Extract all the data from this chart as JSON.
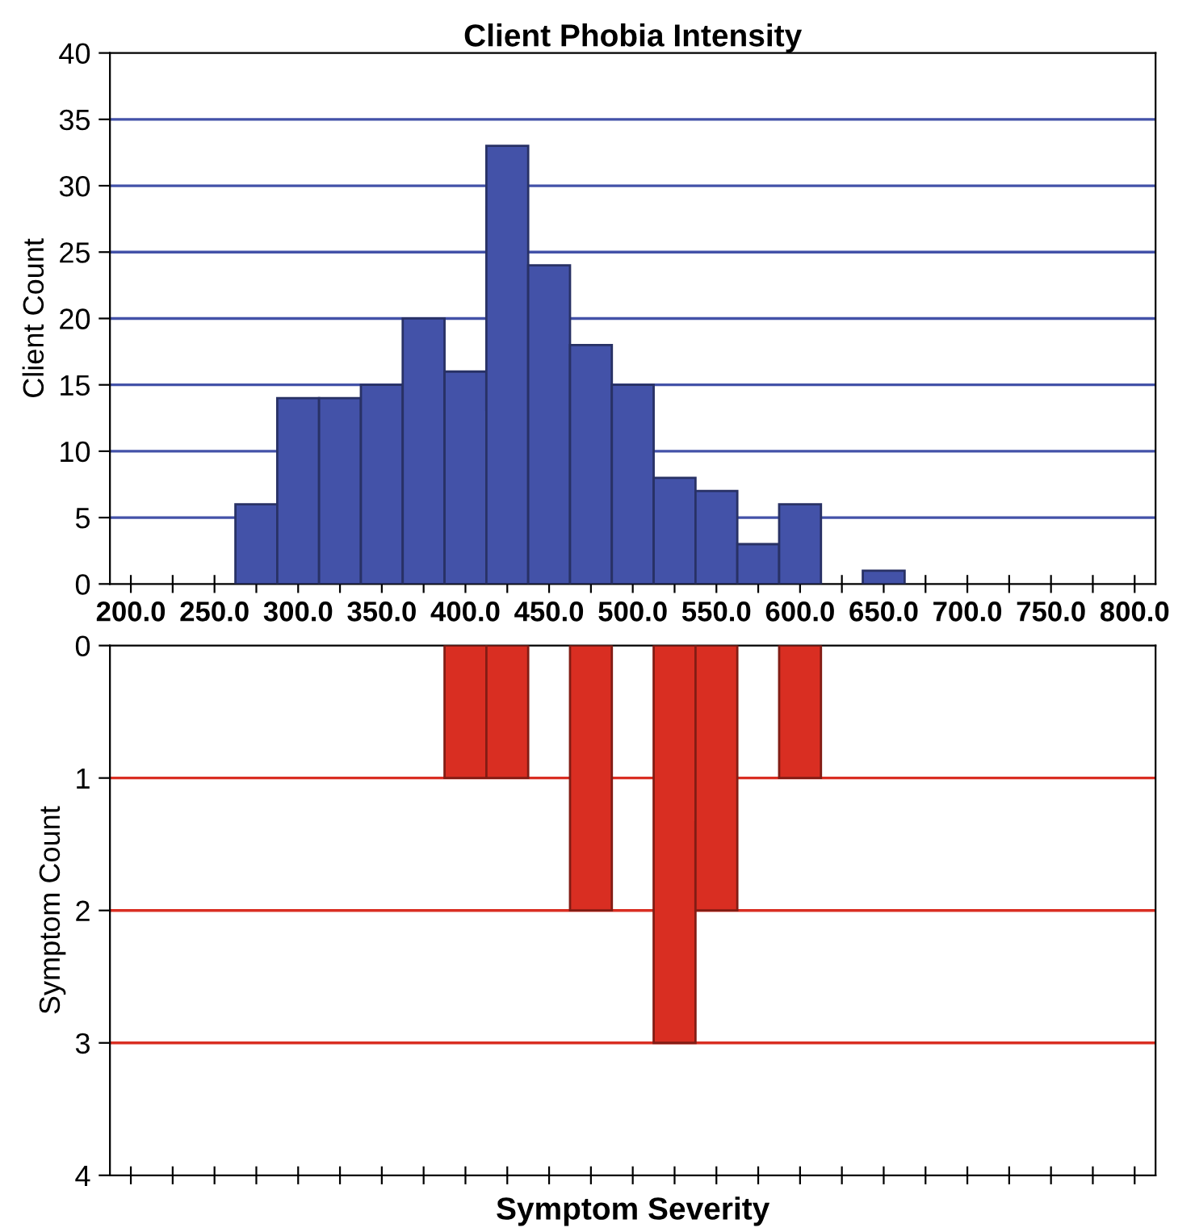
{
  "chart_data": [
    {
      "type": "histogram",
      "title": "Client Phobia Intensity",
      "ylabel": "Client Count",
      "bins": [
        262.5,
        287.5,
        312.5,
        337.5,
        362.5,
        387.5,
        412.5,
        437.5,
        462.5,
        487.5,
        512.5,
        537.5,
        562.5,
        587.5,
        612.5,
        637.5,
        662.5
      ],
      "values": [
        6,
        14,
        14,
        15,
        20,
        16,
        33,
        24,
        18,
        15,
        8,
        7,
        3,
        6,
        0,
        1
      ],
      "color": "#4352a8",
      "xlim": [
        187.5,
        812.5
      ],
      "xticks": [
        {
          "value": 200,
          "label": "200.0"
        },
        {
          "value": 225,
          "label": null
        },
        {
          "value": 250,
          "label": "250.0"
        },
        {
          "value": 275,
          "label": null
        },
        {
          "value": 300,
          "label": "300.0"
        },
        {
          "value": 325,
          "label": null
        },
        {
          "value": 350,
          "label": "350.0"
        },
        {
          "value": 375,
          "label": null
        },
        {
          "value": 400,
          "label": "400.0"
        },
        {
          "value": 425,
          "label": null
        },
        {
          "value": 450,
          "label": "450.0"
        },
        {
          "value": 475,
          "label": null
        },
        {
          "value": 500,
          "label": "500.0"
        },
        {
          "value": 525,
          "label": null
        },
        {
          "value": 550,
          "label": "550.0"
        },
        {
          "value": 575,
          "label": null
        },
        {
          "value": 600,
          "label": "600.0"
        },
        {
          "value": 625,
          "label": null
        },
        {
          "value": 650,
          "label": "650.0"
        },
        {
          "value": 675,
          "label": null
        },
        {
          "value": 700,
          "label": "700.0"
        },
        {
          "value": 725,
          "label": null
        },
        {
          "value": 750,
          "label": "750.0"
        },
        {
          "value": 775,
          "label": null
        },
        {
          "value": 800,
          "label": "800.0"
        }
      ],
      "ylim": [
        0,
        40
      ],
      "yticks": [
        0,
        5,
        10,
        15,
        20,
        25,
        30,
        35,
        40
      ],
      "grid": "y"
    },
    {
      "type": "histogram",
      "xlabel": "Symptom Severity",
      "ylabel": "Symptom Count",
      "bins": [
        387.5,
        412.5,
        437.5,
        462.5,
        487.5,
        512.5,
        537.5,
        562.5,
        587.5,
        612.5
      ],
      "values": [
        1,
        1,
        0,
        2,
        0,
        3,
        2,
        0,
        1
      ],
      "color": "#d92e22",
      "xlim": [
        187.5,
        812.5
      ],
      "xticks": [
        {
          "value": 200,
          "label": null
        },
        {
          "value": 225,
          "label": null
        },
        {
          "value": 250,
          "label": null
        },
        {
          "value": 275,
          "label": null
        },
        {
          "value": 300,
          "label": null
        },
        {
          "value": 325,
          "label": null
        },
        {
          "value": 350,
          "label": null
        },
        {
          "value": 375,
          "label": null
        },
        {
          "value": 400,
          "label": null
        },
        {
          "value": 425,
          "label": null
        },
        {
          "value": 450,
          "label": null
        },
        {
          "value": 475,
          "label": null
        },
        {
          "value": 500,
          "label": null
        },
        {
          "value": 525,
          "label": null
        },
        {
          "value": 550,
          "label": null
        },
        {
          "value": 575,
          "label": null
        },
        {
          "value": 600,
          "label": null
        },
        {
          "value": 625,
          "label": null
        },
        {
          "value": 650,
          "label": null
        },
        {
          "value": 675,
          "label": null
        },
        {
          "value": 700,
          "label": null
        },
        {
          "value": 725,
          "label": null
        },
        {
          "value": 750,
          "label": null
        },
        {
          "value": 775,
          "label": null
        },
        {
          "value": 800,
          "label": null
        }
      ],
      "ylim": [
        4,
        0
      ],
      "yticks": [
        0,
        1,
        2,
        3,
        4
      ],
      "grid": "y",
      "tick_labels": "y"
    }
  ]
}
